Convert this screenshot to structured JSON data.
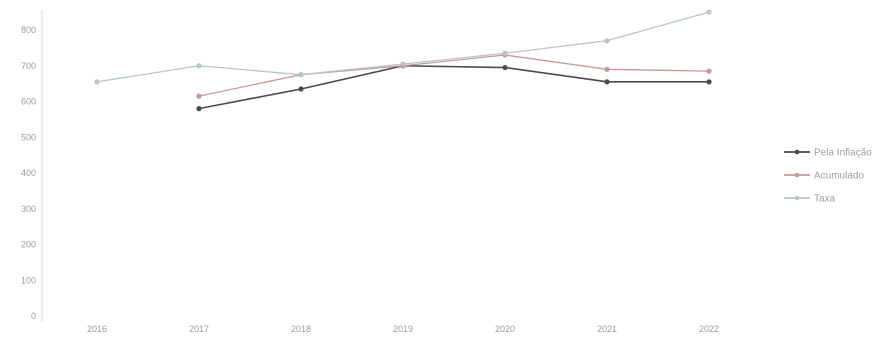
{
  "chart_data": {
    "type": "line",
    "x": [
      "2016",
      "2017",
      "2018",
      "2019",
      "2020",
      "2021",
      "2022"
    ],
    "ylim": [
      0,
      800
    ],
    "yticks": [
      "0",
      "100",
      "200",
      "300",
      "400",
      "500",
      "600",
      "700",
      "800"
    ],
    "grid": false,
    "legend_position": "right",
    "series": [
      {
        "name": "Pela Inflação",
        "color": "#4a4a4a",
        "values": [
          null,
          580,
          635,
          700,
          695,
          655,
          655
        ]
      },
      {
        "name": "Acumulado",
        "color": "#c79a9a",
        "values": [
          null,
          615,
          675,
          700,
          730,
          690,
          685
        ]
      },
      {
        "name": "Taxa",
        "color": "#b7c5cc",
        "values": [
          655,
          700,
          675,
          705,
          735,
          770,
          850
        ]
      }
    ]
  }
}
